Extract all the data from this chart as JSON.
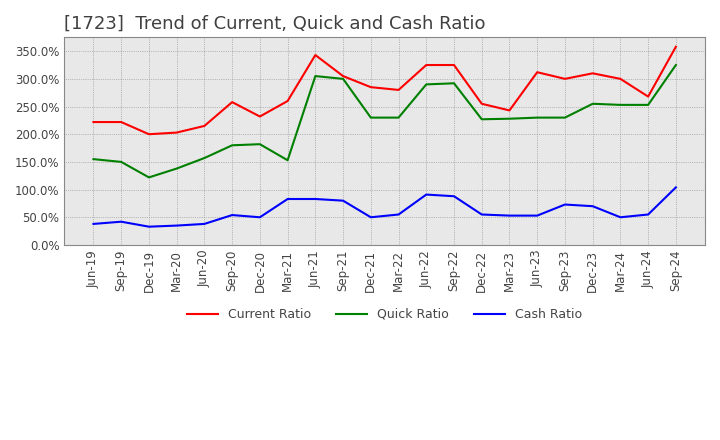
{
  "title": "[1723]  Trend of Current, Quick and Cash Ratio",
  "x_labels": [
    "Jun-19",
    "Sep-19",
    "Dec-19",
    "Mar-20",
    "Jun-20",
    "Sep-20",
    "Dec-20",
    "Mar-21",
    "Jun-21",
    "Sep-21",
    "Dec-21",
    "Mar-22",
    "Jun-22",
    "Sep-22",
    "Dec-22",
    "Mar-23",
    "Jun-23",
    "Sep-23",
    "Dec-23",
    "Mar-24",
    "Jun-24",
    "Sep-24"
  ],
  "current_ratio": [
    222,
    222,
    200,
    203,
    215,
    258,
    232,
    260,
    343,
    305,
    285,
    280,
    325,
    325,
    255,
    243,
    312,
    300,
    310,
    300,
    268,
    358
  ],
  "quick_ratio": [
    155,
    150,
    122,
    138,
    157,
    180,
    182,
    153,
    305,
    300,
    230,
    230,
    290,
    292,
    227,
    228,
    230,
    230,
    255,
    253,
    253,
    325
  ],
  "cash_ratio": [
    38,
    42,
    33,
    35,
    38,
    54,
    50,
    83,
    83,
    80,
    50,
    55,
    91,
    88,
    55,
    53,
    53,
    73,
    70,
    50,
    55,
    104
  ],
  "current_color": "#FF0000",
  "quick_color": "#008000",
  "cash_color": "#0000FF",
  "ylim": [
    0,
    375
  ],
  "yticks": [
    0,
    50,
    100,
    150,
    200,
    250,
    300,
    350
  ],
  "plot_bg_color": "#E8E8E8",
  "background_color": "#FFFFFF",
  "grid_color": "#888888",
  "title_fontsize": 13,
  "legend_labels": [
    "Current Ratio",
    "Quick Ratio",
    "Cash Ratio"
  ]
}
